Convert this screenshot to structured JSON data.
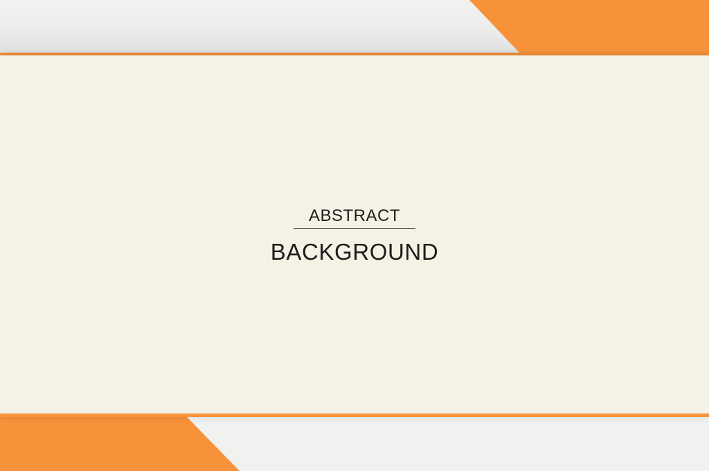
{
  "colors": {
    "accent": "#f7923a",
    "accent_dark": "#e9832f",
    "background": "#f1f1f0",
    "panel": "#f4f1e5",
    "text": "#1d1d1b"
  },
  "heading": {
    "line1": "ABSTRACT",
    "line2": "BACKGROUND"
  }
}
